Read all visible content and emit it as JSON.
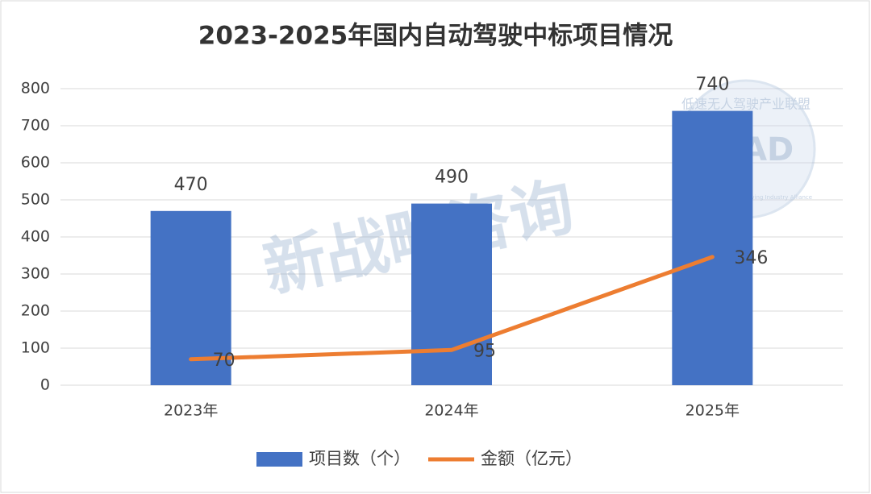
{
  "chart_data": {
    "type": "bar",
    "title": "2023-2025年国内自动驾驶中标项目情况",
    "categories": [
      "2023年",
      "2024年",
      "2025年"
    ],
    "series": [
      {
        "name": "项目数（个）",
        "color": "#4472c4",
        "type": "bar",
        "values": [
          470,
          490,
          740
        ]
      },
      {
        "name": "金额（亿元）",
        "color": "#ed7d31",
        "type": "line",
        "values": [
          70,
          95,
          346
        ]
      }
    ],
    "ylim": [
      0,
      800
    ],
    "yticks": [
      0,
      100,
      200,
      300,
      400,
      500,
      600,
      700,
      800
    ],
    "grid": true,
    "legend": "bottom",
    "watermarks": [
      "新战略咨询",
      "低速无人驾驶产业联盟",
      "LSAD",
      "Lowspeed Automated Driving Industry Alliance"
    ]
  }
}
